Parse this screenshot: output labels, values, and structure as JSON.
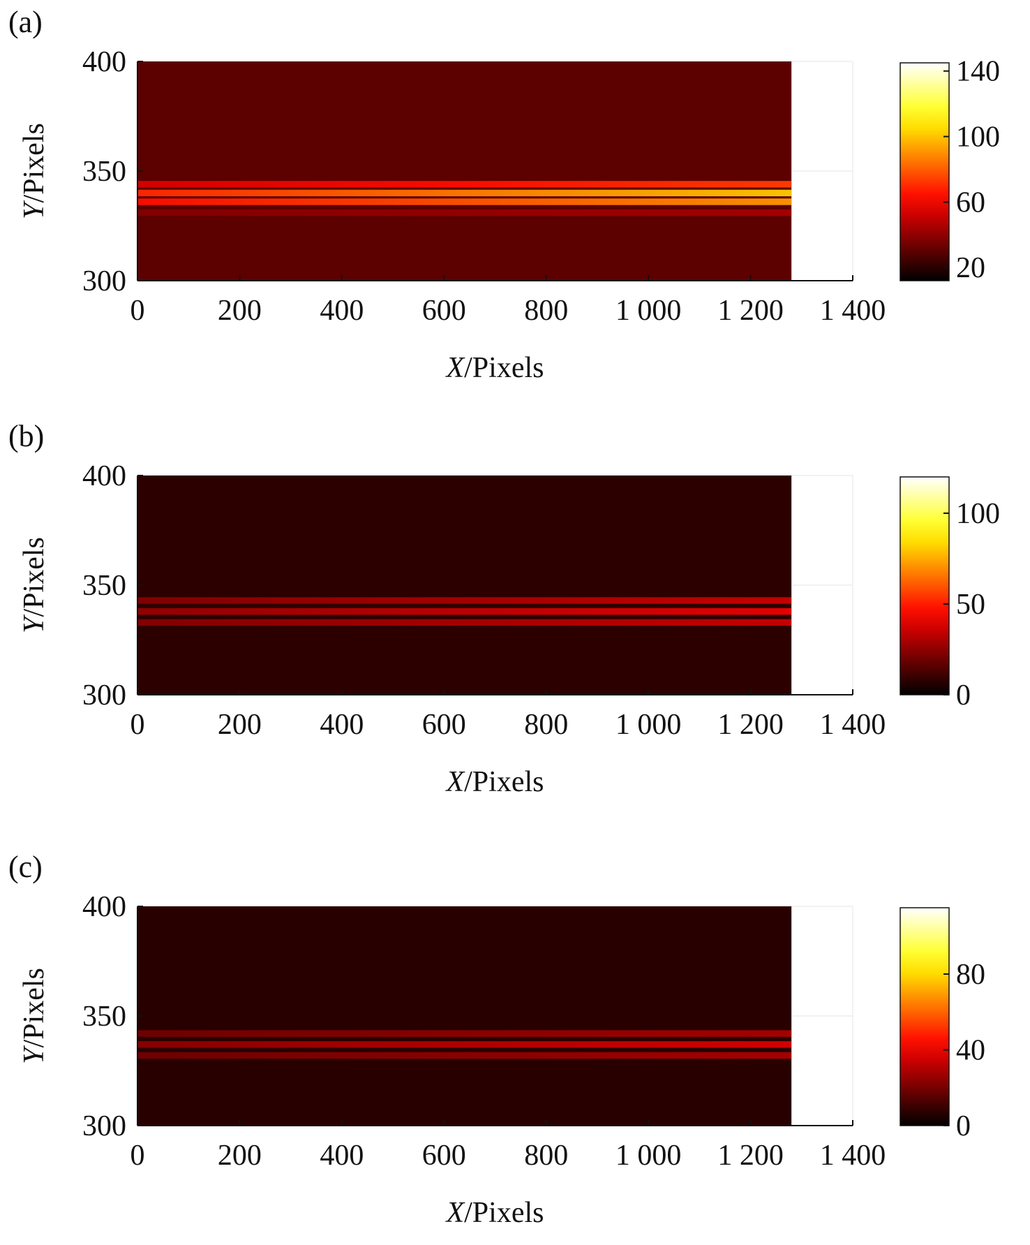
{
  "chart_data": [
    {
      "type": "heatmap",
      "panel_label": "(a)",
      "xlabel": {
        "var": "X",
        "unit": "/Pixels"
      },
      "ylabel": {
        "var": "Y",
        "unit": "/Pixels"
      },
      "xlim": [
        0,
        1400
      ],
      "ylim": [
        300,
        400
      ],
      "x_ticks": [
        0,
        200,
        400,
        600,
        800,
        1000,
        1200,
        1400
      ],
      "x_tick_labels": [
        "0",
        "200",
        "400",
        "600",
        "800",
        "1 000",
        "1 200",
        "1 400"
      ],
      "y_ticks": [
        300,
        350,
        400
      ],
      "y_tick_labels": [
        "300",
        "350",
        "400"
      ],
      "image_x_extent": [
        0,
        1280
      ],
      "colorbar": {
        "min": 12,
        "max": 145,
        "ticks": [
          20,
          60,
          100,
          140
        ],
        "tick_labels": [
          "20",
          "60",
          "100",
          "140"
        ],
        "colormap": "hot"
      },
      "background_level": 30,
      "bands": [
        {
          "y": 344,
          "peak": 44,
          "peak_x": 1270
        },
        {
          "y": 340,
          "peak": 72,
          "peak_x": 1270
        },
        {
          "y": 336,
          "peak": 62,
          "peak_x": 1270
        },
        {
          "y": 331,
          "peak": 14,
          "peak_x": 1270
        }
      ]
    },
    {
      "type": "heatmap",
      "panel_label": "(b)",
      "xlabel": {
        "var": "X",
        "unit": "/Pixels"
      },
      "ylabel": {
        "var": "Y",
        "unit": "/Pixels"
      },
      "xlim": [
        0,
        1400
      ],
      "ylim": [
        300,
        400
      ],
      "x_ticks": [
        0,
        200,
        400,
        600,
        800,
        1000,
        1200,
        1400
      ],
      "x_tick_labels": [
        "0",
        "200",
        "400",
        "600",
        "800",
        "1 000",
        "1 200",
        "1 400"
      ],
      "y_ticks": [
        300,
        350,
        400
      ],
      "y_tick_labels": [
        "300",
        "350",
        "400"
      ],
      "image_x_extent": [
        0,
        1280
      ],
      "colorbar": {
        "min": 0,
        "max": 120,
        "ticks": [
          0,
          50,
          100
        ],
        "tick_labels": [
          "0",
          "50",
          "100"
        ],
        "colormap": "hot"
      },
      "background_level": 8,
      "bands": [
        {
          "y": 343,
          "peak": 28,
          "peak_x": 1270
        },
        {
          "y": 338,
          "peak": 34,
          "peak_x": 1270
        },
        {
          "y": 333,
          "peak": 28,
          "peak_x": 1270
        }
      ]
    },
    {
      "type": "heatmap",
      "panel_label": "(c)",
      "xlabel": {
        "var": "X",
        "unit": "/Pixels"
      },
      "ylabel": {
        "var": "Y",
        "unit": "/Pixels"
      },
      "xlim": [
        0,
        1400
      ],
      "ylim": [
        300,
        400
      ],
      "x_ticks": [
        0,
        200,
        400,
        600,
        800,
        1000,
        1200,
        1400
      ],
      "x_tick_labels": [
        "0",
        "200",
        "400",
        "600",
        "800",
        "1 000",
        "1 200",
        "1 400"
      ],
      "y_ticks": [
        300,
        350,
        400
      ],
      "y_tick_labels": [
        "300",
        "350",
        "400"
      ],
      "image_x_extent": [
        0,
        1280
      ],
      "colorbar": {
        "min": 0,
        "max": 115,
        "ticks": [
          0,
          40,
          80
        ],
        "tick_labels": [
          "0",
          "40",
          "80"
        ],
        "colormap": "hot"
      },
      "background_level": 7,
      "bands": [
        {
          "y": 342,
          "peak": 22,
          "peak_x": 1270
        },
        {
          "y": 337,
          "peak": 30,
          "peak_x": 1270
        },
        {
          "y": 332,
          "peak": 22,
          "peak_x": 1270
        }
      ]
    }
  ]
}
